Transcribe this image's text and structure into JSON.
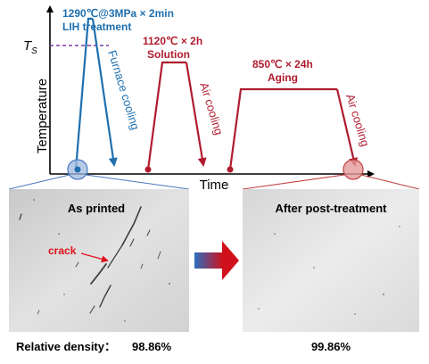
{
  "axes": {
    "y_label": "Temperature",
    "x_label": "Time",
    "ts_label": "T",
    "ts_subscript": "S"
  },
  "stages": {
    "lih": {
      "line1": "1290℃@3MPa × 2min",
      "line2": "LIH treatment",
      "cooling": "Furnace cooling",
      "color": "#1f6fae"
    },
    "solution": {
      "line1": "1120℃ × 2h",
      "line2": "Solution",
      "cooling": "Air cooling",
      "color": "#b01c2e"
    },
    "aging": {
      "line1": "850℃ × 24h",
      "line2": "Aging",
      "cooling": "Air cooling",
      "color": "#b01c2e"
    }
  },
  "micrographs": {
    "left_title": "As printed",
    "right_title": "After post-treatment",
    "crack_label": "crack",
    "crack_color": "#e0101a"
  },
  "density": {
    "label": "Relative density：",
    "as_printed": "98.86%",
    "post_treated": "99.86%"
  },
  "colors": {
    "ts_line": "#7b3fa0",
    "arrow_start": "#2a6fc0",
    "arrow_end": "#d0101a"
  }
}
